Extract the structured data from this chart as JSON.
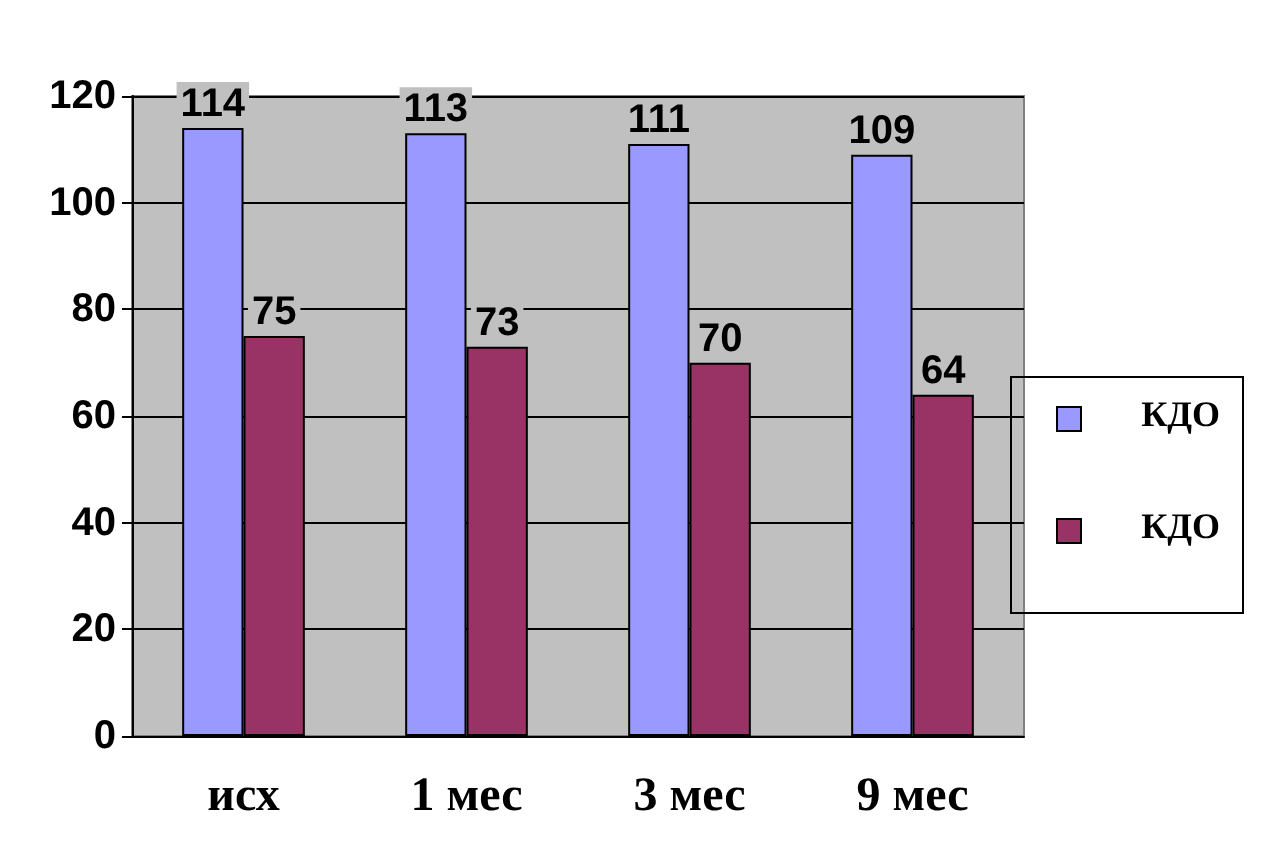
{
  "chart_data": {
    "type": "bar",
    "categories": [
      "исх",
      "1 мес",
      "3 мес",
      "9 мес"
    ],
    "series": [
      {
        "name": "КДО",
        "color": "#9999ff",
        "values": [
          114,
          113,
          111,
          109
        ]
      },
      {
        "name": "КДО",
        "color": "#993366",
        "values": [
          75,
          73,
          70,
          64
        ]
      }
    ],
    "ylim": [
      0,
      120
    ],
    "yticks": [
      0,
      20,
      40,
      60,
      80,
      100,
      120
    ],
    "grid": "y",
    "legend": "right",
    "data_labels": true
  }
}
